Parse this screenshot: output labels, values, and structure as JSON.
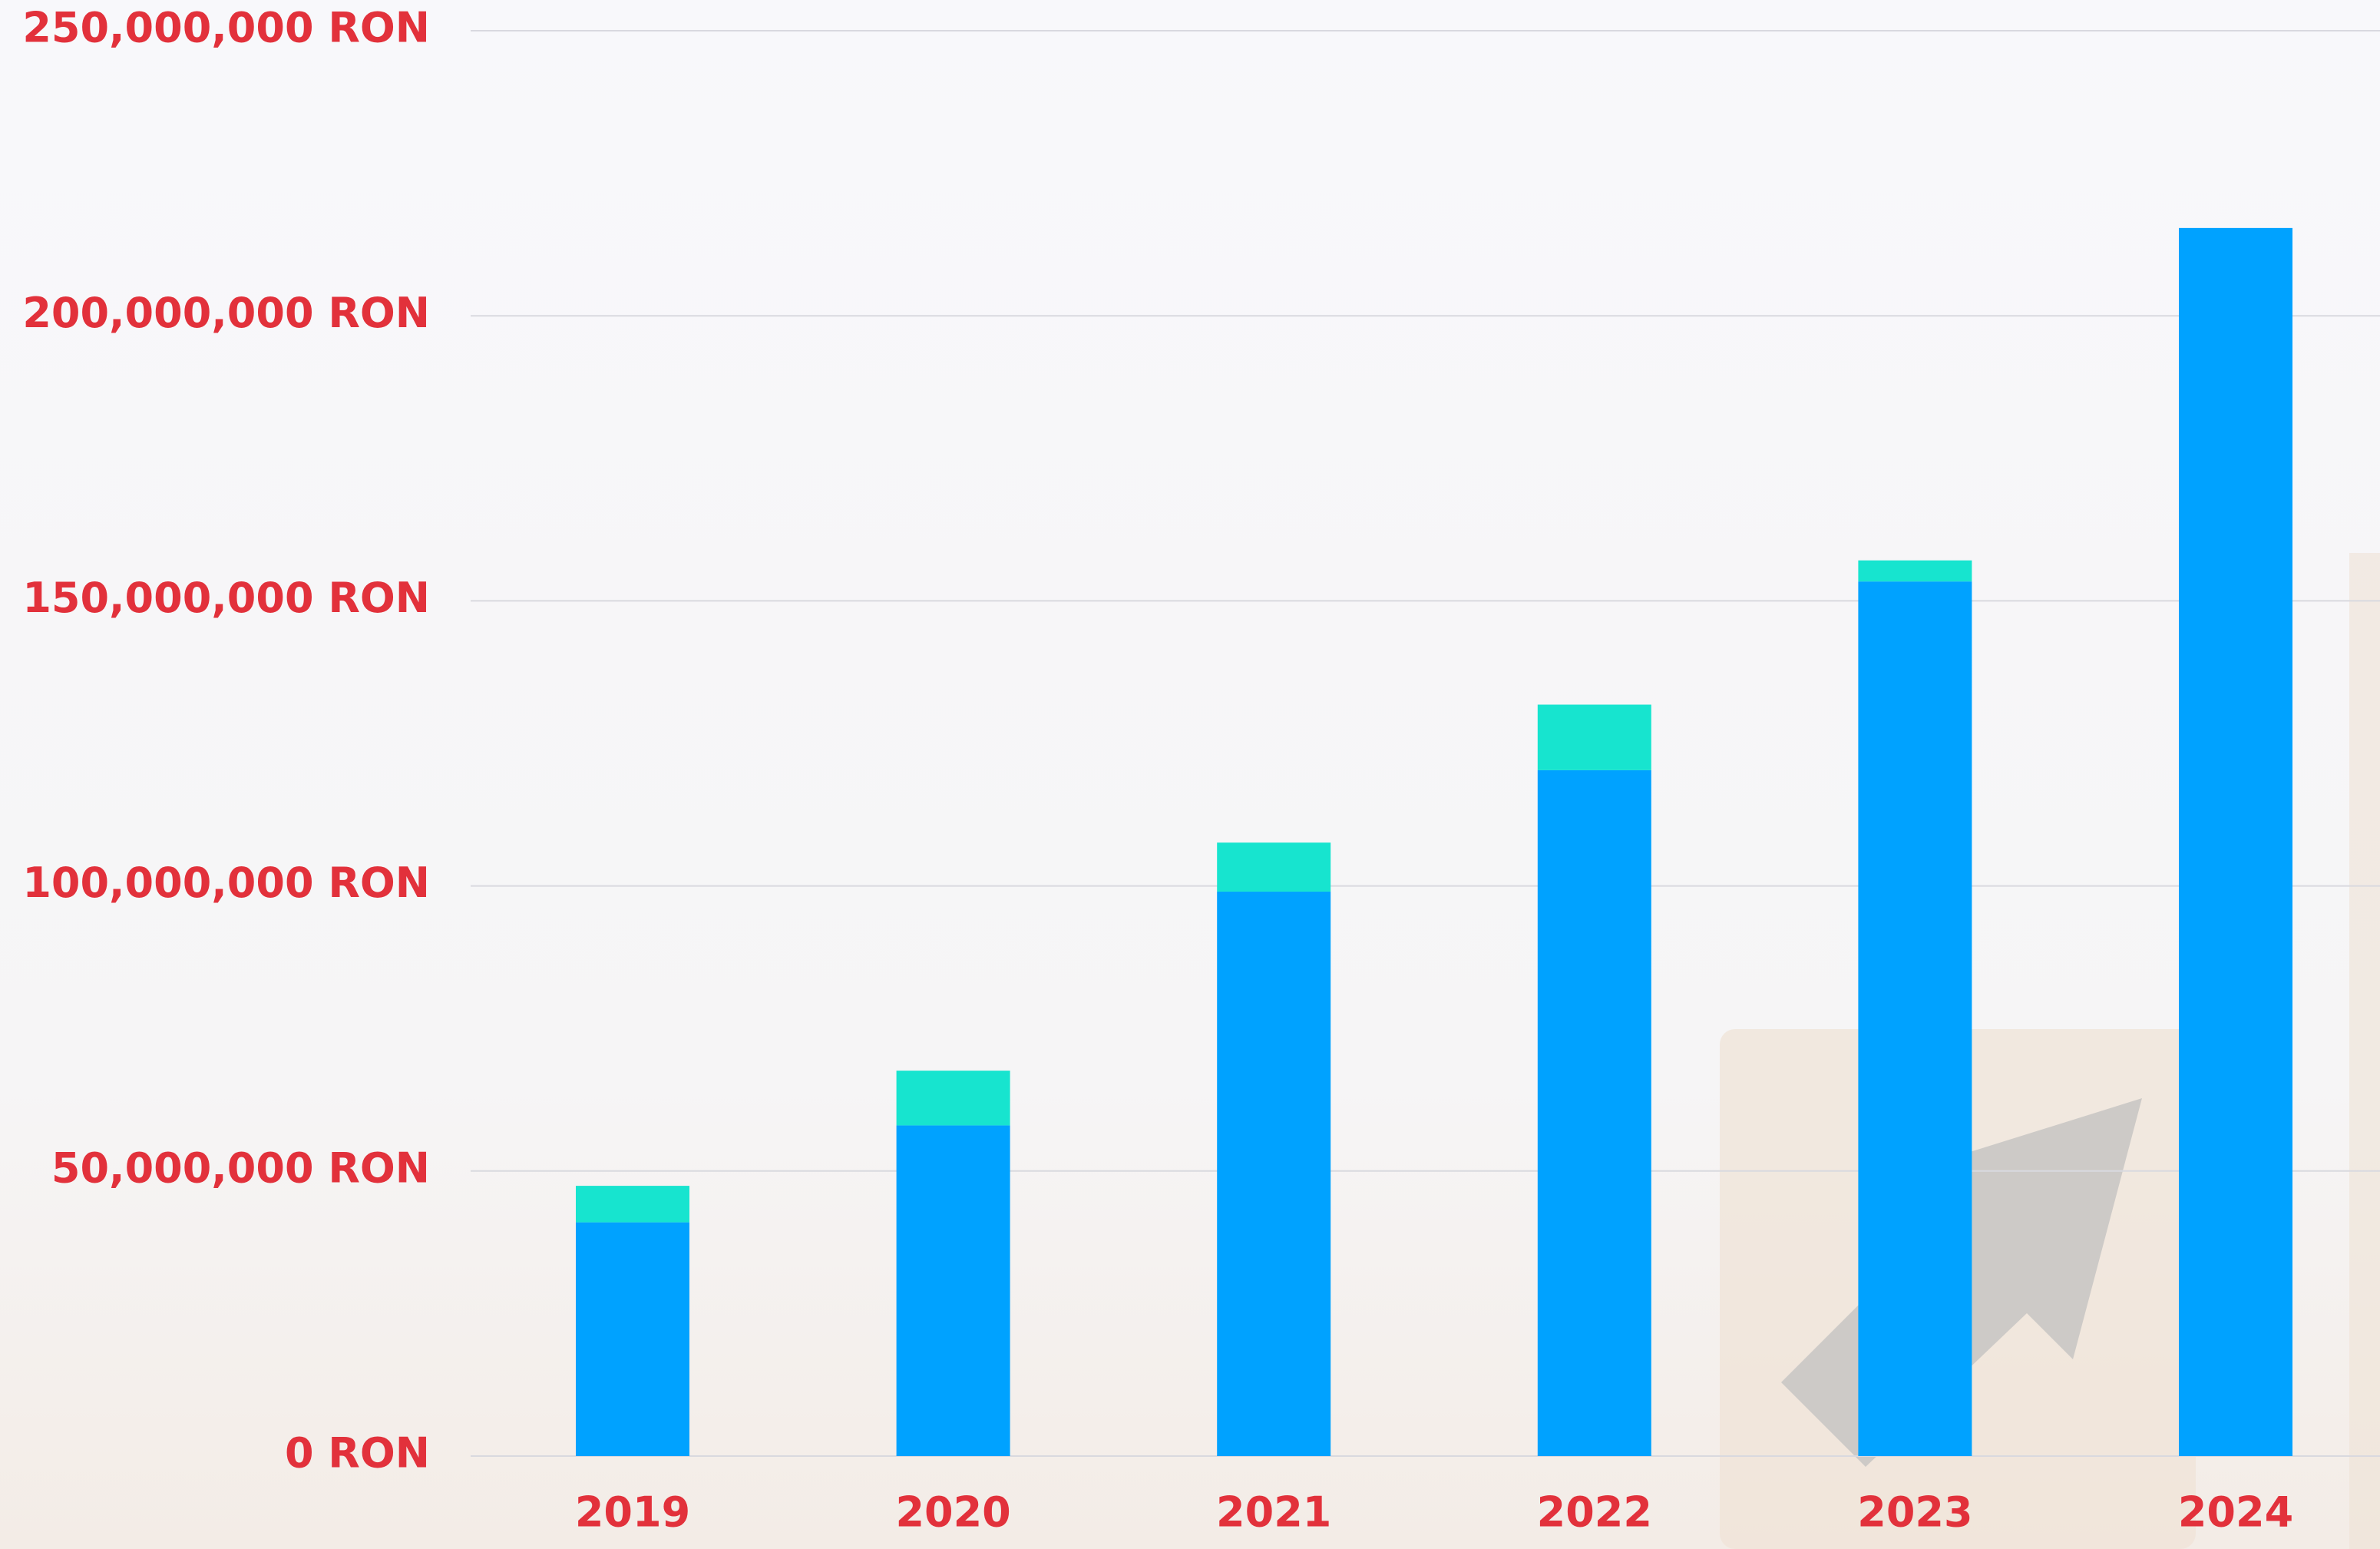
{
  "chart_data": {
    "type": "stacked-bar",
    "categories": [
      "2019",
      "2020",
      "2021",
      "2022",
      "2023",
      "2024"
    ],
    "series": [
      {
        "color": "#00a2ff",
        "values": [
          41000000,
          58000000,
          99000000,
          120300000,
          153400000,
          215400000
        ]
      },
      {
        "color": "#17e4cf",
        "values": [
          6400000,
          9600000,
          8600000,
          11500000,
          3700000,
          0
        ]
      }
    ],
    "ylim": [
      0,
      250000000
    ],
    "yticks": [
      {
        "value": 0,
        "label": "0 RON"
      },
      {
        "value": 50000000,
        "label": "50,000,000 RON"
      },
      {
        "value": 100000000,
        "label": "100,000,000 RON"
      },
      {
        "value": 150000000,
        "label": "150,000,000 RON"
      },
      {
        "value": 200000000,
        "label": "200,000,000 RON"
      },
      {
        "value": 250000000,
        "label": "250,000,000 RON"
      }
    ],
    "grid": true
  }
}
